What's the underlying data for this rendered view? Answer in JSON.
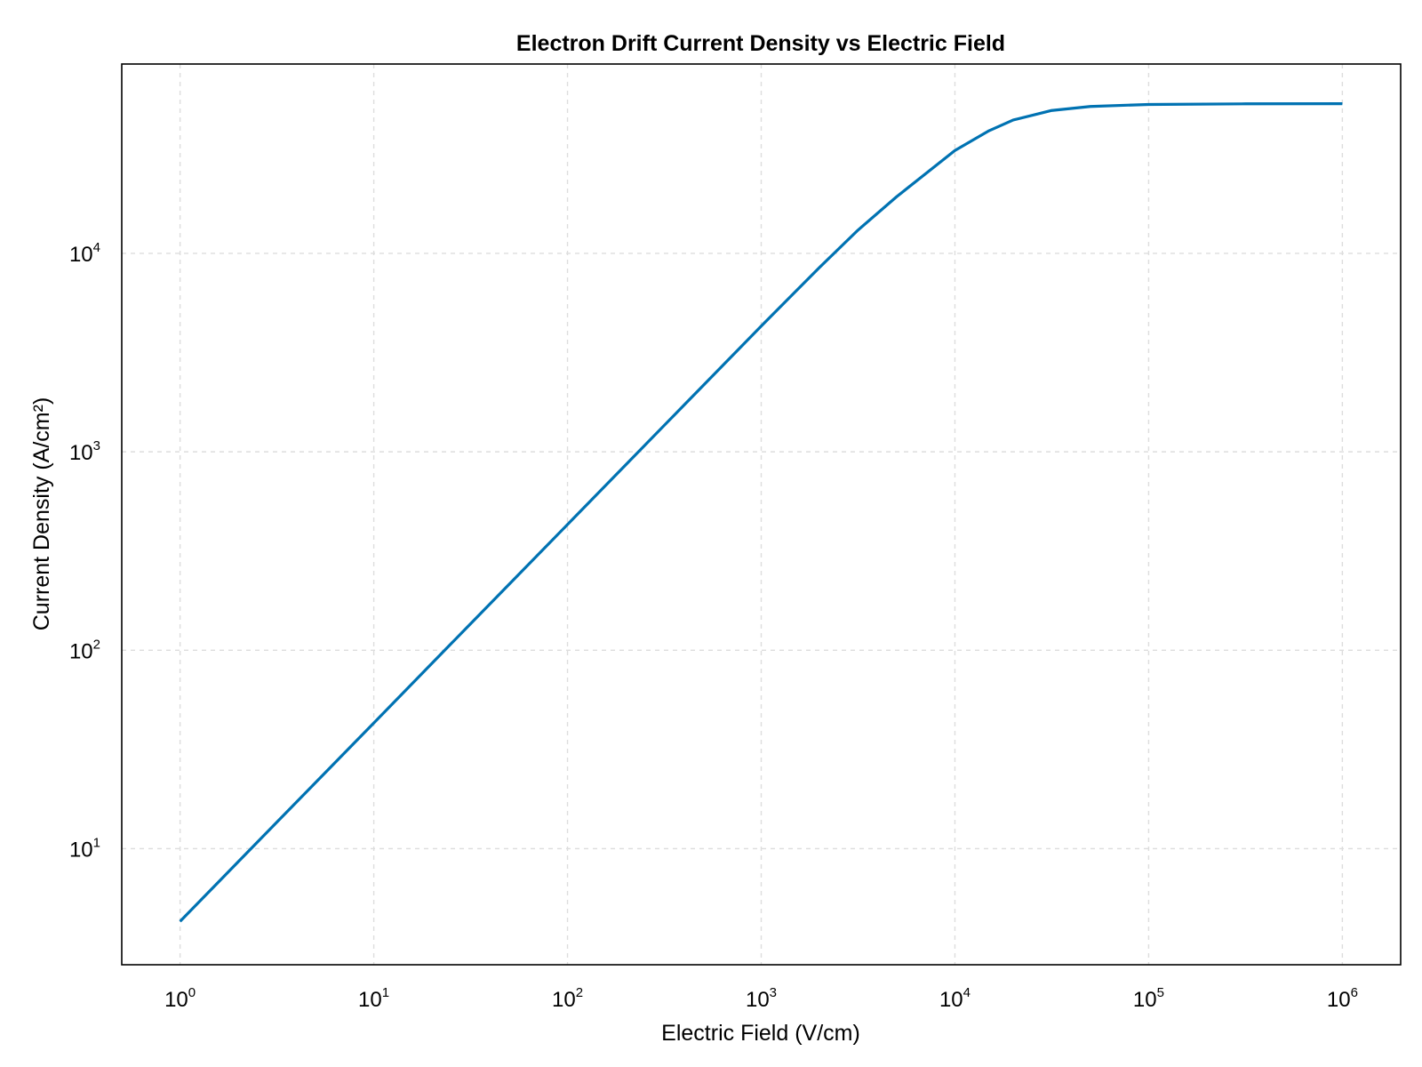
{
  "chart_data": {
    "type": "line",
    "title": "Electron Drift Current Density vs Electric Field",
    "xlabel": "Electric Field (V/cm)",
    "ylabel": "Current Density (A/cm²)",
    "xscale": "log",
    "yscale": "log",
    "xlim": [
      0.5,
      2000000
    ],
    "ylim": [
      2.6,
      90000
    ],
    "xticks": [
      {
        "value": 1,
        "base": "10",
        "exp": "0"
      },
      {
        "value": 10,
        "base": "10",
        "exp": "1"
      },
      {
        "value": 100,
        "base": "10",
        "exp": "2"
      },
      {
        "value": 1000,
        "base": "10",
        "exp": "3"
      },
      {
        "value": 10000,
        "base": "10",
        "exp": "4"
      },
      {
        "value": 100000,
        "base": "10",
        "exp": "5"
      },
      {
        "value": 1000000,
        "base": "10",
        "exp": "6"
      }
    ],
    "yticks": [
      {
        "value": 10,
        "base": "10",
        "exp": "1"
      },
      {
        "value": 100,
        "base": "10",
        "exp": "2"
      },
      {
        "value": 1000,
        "base": "10",
        "exp": "3"
      },
      {
        "value": 10000,
        "base": "10",
        "exp": "4"
      }
    ],
    "grid": true,
    "series": [
      {
        "color": "#0072b2",
        "x": [
          1,
          3.16,
          10,
          31.6,
          100,
          316,
          1000,
          2000,
          3160,
          5000,
          10000,
          15000,
          20000,
          31600,
          50000,
          100000,
          316000,
          1000000
        ],
        "y": [
          4.3,
          13.6,
          43,
          136,
          430,
          1360,
          4300,
          8500,
          13100,
          19300,
          33000,
          41500,
          47000,
          52500,
          55000,
          56300,
          56700,
          56800
        ]
      }
    ]
  }
}
